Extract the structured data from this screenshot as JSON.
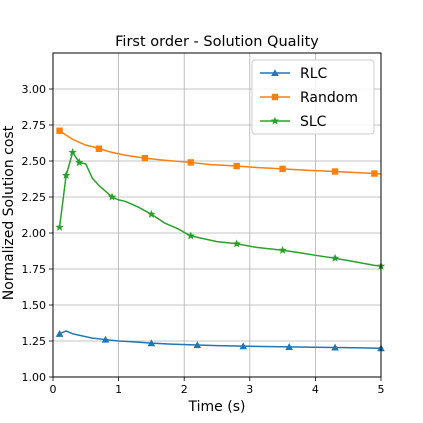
{
  "chart_data": {
    "type": "line",
    "title": "First order - Solution Quality",
    "xlabel": "Time (s)",
    "ylabel": "Normalized Solution cost",
    "xlim": [
      0,
      5
    ],
    "ylim": [
      1.0,
      3.25
    ],
    "xticks": [
      0,
      1,
      2,
      3,
      4,
      5
    ],
    "xtick_labels": [
      "0",
      "1",
      "2",
      "3",
      "4",
      "5"
    ],
    "yticks": [
      1.0,
      1.25,
      1.5,
      1.75,
      2.0,
      2.25,
      2.5,
      2.75,
      3.0
    ],
    "ytick_labels": [
      "1.00",
      "1.25",
      "1.50",
      "1.75",
      "2.00",
      "2.25",
      "2.50",
      "2.75",
      "3.00"
    ],
    "grid": true,
    "legend_position": "top-right",
    "series": [
      {
        "name": "RLC",
        "color": "#1f77b4",
        "marker": "triangle",
        "x": [
          0.1,
          0.2,
          0.3,
          0.4,
          0.5,
          0.6,
          0.8,
          1.0,
          1.2,
          1.5,
          1.8,
          2.2,
          2.5,
          2.9,
          3.2,
          3.6,
          4.0,
          4.3,
          4.6,
          5.0
        ],
        "y": [
          1.3,
          1.32,
          1.3,
          1.29,
          1.28,
          1.27,
          1.26,
          1.25,
          1.245,
          1.235,
          1.228,
          1.222,
          1.218,
          1.214,
          1.212,
          1.209,
          1.207,
          1.205,
          1.203,
          1.2
        ],
        "marker_indices": [
          0,
          6,
          9,
          11,
          13,
          15,
          17,
          19
        ]
      },
      {
        "name": "Random",
        "color": "#ff7f0e",
        "marker": "square",
        "x": [
          0.1,
          0.2,
          0.3,
          0.4,
          0.5,
          0.6,
          0.7,
          0.9,
          1.1,
          1.4,
          1.7,
          2.1,
          2.4,
          2.8,
          3.1,
          3.5,
          3.9,
          4.3,
          4.6,
          4.9,
          5.0
        ],
        "y": [
          2.71,
          2.68,
          2.65,
          2.63,
          2.61,
          2.6,
          2.585,
          2.56,
          2.54,
          2.52,
          2.505,
          2.49,
          2.475,
          2.465,
          2.455,
          2.445,
          2.435,
          2.427,
          2.42,
          2.413,
          2.41
        ],
        "marker_indices": [
          0,
          6,
          9,
          11,
          13,
          15,
          17,
          19
        ]
      },
      {
        "name": "SLC",
        "color": "#2ca02c",
        "marker": "star",
        "x": [
          0.1,
          0.2,
          0.3,
          0.4,
          0.5,
          0.6,
          0.7,
          0.8,
          0.9,
          1.0,
          1.1,
          1.2,
          1.3,
          1.5,
          1.7,
          1.9,
          2.1,
          2.3,
          2.5,
          2.8,
          3.1,
          3.5,
          3.8,
          4.0,
          4.3,
          4.6,
          4.9,
          5.0
        ],
        "y": [
          2.04,
          2.4,
          2.56,
          2.49,
          2.48,
          2.38,
          2.33,
          2.29,
          2.25,
          2.23,
          2.22,
          2.2,
          2.18,
          2.13,
          2.07,
          2.03,
          1.98,
          1.96,
          1.94,
          1.925,
          1.9,
          1.88,
          1.86,
          1.845,
          1.825,
          1.8,
          1.775,
          1.77
        ],
        "marker_indices": [
          0,
          1,
          2,
          3,
          8,
          13,
          16,
          19,
          21,
          24,
          27
        ]
      }
    ]
  }
}
